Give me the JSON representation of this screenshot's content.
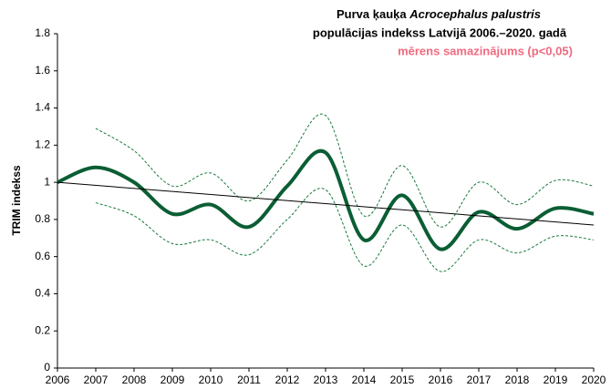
{
  "chart_data": {
    "type": "line",
    "title": [
      "Purva ķauķa ",
      "Acrocephalus palustris"
    ],
    "title_line2": "populācijas indekss Latvijā 2006.–2020. gadā",
    "subtitle": "mērens samazinājums (p<0,05)",
    "y_label": "TRIM indekss",
    "x": [
      2006,
      2007,
      2008,
      2009,
      2010,
      2011,
      2012,
      2013,
      2014,
      2015,
      2016,
      2017,
      2018,
      2019,
      2020
    ],
    "xlim": [
      2006,
      2020
    ],
    "xticks": [
      2006,
      2007,
      2008,
      2009,
      2010,
      2011,
      2012,
      2013,
      2014,
      2015,
      2016,
      2017,
      2018,
      2019,
      2020
    ],
    "ylim": [
      0,
      1.8
    ],
    "yticks": [
      0,
      0.2,
      0.4,
      0.6,
      0.8,
      1,
      1.2,
      1.4,
      1.6,
      1.8
    ],
    "series": [
      {
        "color": "#0b5e34",
        "style": "solid",
        "width": 4,
        "smooth": true,
        "values": [
          1.0,
          1.08,
          1.0,
          0.83,
          0.88,
          0.76,
          0.98,
          1.16,
          0.69,
          0.93,
          0.64,
          0.84,
          0.75,
          0.86,
          0.83
        ]
      },
      {
        "color": "#1a7a3e",
        "style": "dashed",
        "width": 1,
        "smooth": true,
        "values": [
          null,
          1.29,
          1.17,
          0.98,
          1.05,
          0.9,
          1.12,
          1.36,
          0.82,
          1.09,
          0.76,
          1.0,
          0.88,
          1.01,
          0.98
        ]
      },
      {
        "color": "#1a7a3e",
        "style": "dashed",
        "width": 1,
        "smooth": true,
        "values": [
          null,
          0.89,
          0.82,
          0.67,
          0.69,
          0.61,
          0.8,
          0.96,
          0.55,
          0.77,
          0.52,
          0.69,
          0.62,
          0.71,
          0.69
        ]
      },
      {
        "color": "#000000",
        "style": "solid",
        "width": 1,
        "smooth": false,
        "x": [
          2006,
          2020
        ],
        "values": [
          1.0,
          0.77
        ]
      }
    ]
  }
}
